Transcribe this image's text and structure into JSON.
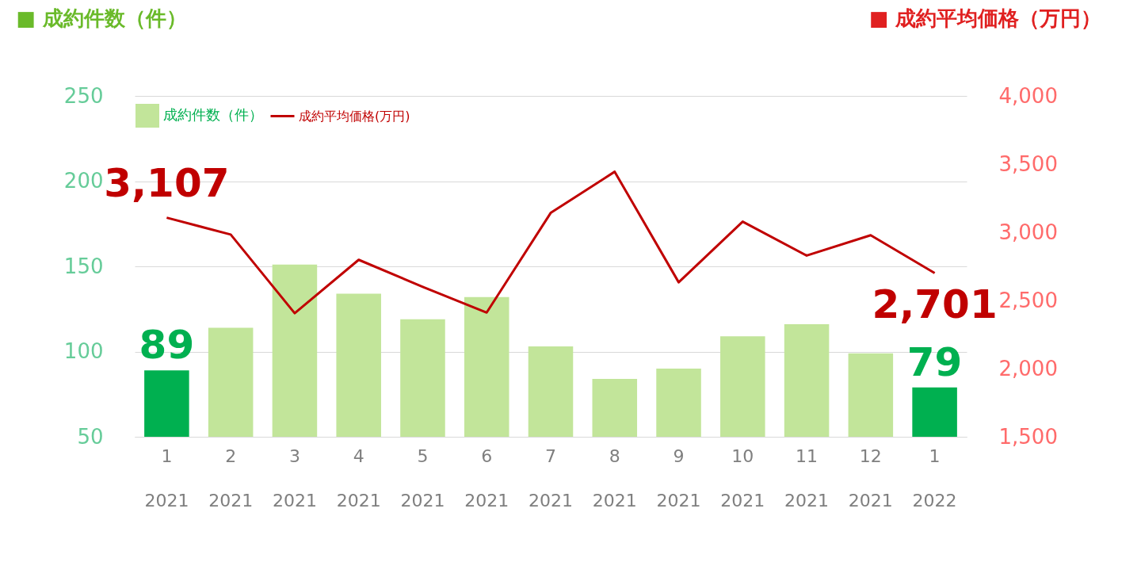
{
  "chart_data": {
    "type": "bar",
    "categories": [
      "1\n2021",
      "2\n2021",
      "3\n2021",
      "4\n2021",
      "5\n2021",
      "6\n2021",
      "7\n2021",
      "8\n2021",
      "9\n2021",
      "10\n2021",
      "11\n2021",
      "12\n2021",
      "1\n2022"
    ],
    "ylabel": "■ 成約件数（件）",
    "y2label": "■ 成約平均価格（万円）",
    "ylim": [
      50,
      250
    ],
    "yticks": [
      50,
      100,
      150,
      200,
      250
    ],
    "y2lim": [
      1500,
      4000
    ],
    "y2ticks": [
      {
        "value": 1500,
        "label": "1,500"
      },
      {
        "value": 2000,
        "label": "2,000"
      },
      {
        "value": 2500,
        "label": "2,500"
      },
      {
        "value": 3000,
        "label": "3,000"
      },
      {
        "value": 3500,
        "label": "3,500"
      },
      {
        "value": 4000,
        "label": "4,000"
      }
    ],
    "grid": "y",
    "legend": "top",
    "series": [
      {
        "name": "成約件数（件）",
        "color": "#c2e59a",
        "colors": [
          "#00b050",
          "#c2e59a",
          "#c2e59a",
          "#c2e59a",
          "#c2e59a",
          "#c2e59a",
          "#c2e59a",
          "#c2e59a",
          "#c2e59a",
          "#c2e59a",
          "#c2e59a",
          "#c2e59a",
          "#00b050"
        ],
        "values": [
          89,
          114,
          151,
          134,
          119,
          132,
          103,
          84,
          90,
          109,
          116,
          99,
          79
        ],
        "value_labels": [
          "89",
          null,
          null,
          null,
          null,
          null,
          null,
          null,
          null,
          null,
          null,
          null,
          "79"
        ]
      },
      {
        "name": "成約平均価格(万円)",
        "type": "line",
        "axis": "y2",
        "color": "#c00000",
        "values": [
          3107,
          2983,
          2406,
          2798,
          2600,
          2411,
          3142,
          3444,
          2633,
          3078,
          2829,
          2978,
          2701
        ],
        "value_labels": [
          "3,107",
          null,
          null,
          null,
          null,
          null,
          null,
          null,
          null,
          null,
          null,
          null,
          "2,701"
        ]
      }
    ]
  }
}
